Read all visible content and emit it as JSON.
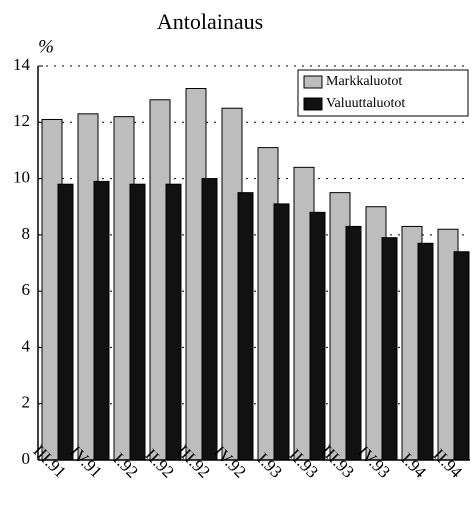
{
  "chart_data": {
    "type": "bar",
    "title": "Antolainaus",
    "y_label": "%",
    "categories": [
      "III.91",
      "IV.91",
      "I.92",
      "II.92",
      "III.92",
      "IV.92",
      "I.93",
      "II.93",
      "III.93",
      "IV.93",
      "I.94",
      "II.94"
    ],
    "series": [
      {
        "name": "Markkaluotot",
        "color": "#bdbdbd",
        "values": [
          12.1,
          12.3,
          12.2,
          12.8,
          13.2,
          12.5,
          11.1,
          10.4,
          9.5,
          9.0,
          8.3,
          8.2
        ]
      },
      {
        "name": "Valuuttaluotot",
        "color": "#111111",
        "values": [
          9.8,
          9.9,
          9.8,
          9.8,
          10.0,
          9.5,
          9.1,
          8.8,
          8.3,
          7.9,
          7.7,
          7.4
        ]
      }
    ],
    "ylim": [
      0,
      14
    ],
    "yticks": [
      0,
      2,
      4,
      6,
      8,
      10,
      12,
      14
    ],
    "grid": true,
    "legend": "top-right"
  }
}
